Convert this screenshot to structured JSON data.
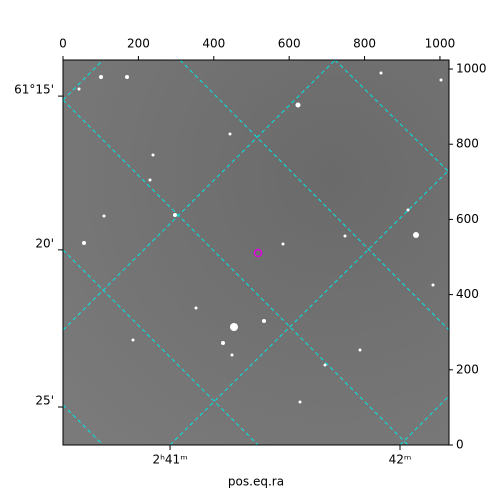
{
  "chart_data": {
    "type": "image",
    "x_label": "pos.eq.ra",
    "xlim": [
      0,
      1024
    ],
    "ylim": [
      0,
      1024
    ],
    "xticks": [
      0,
      200,
      400,
      600,
      800,
      1000
    ],
    "yticks": [
      0,
      200,
      400,
      600,
      800,
      1000
    ],
    "ra_ticks": [
      {
        "value": 284,
        "label": "2ʰ41ᵐ"
      },
      {
        "value": 894,
        "label": "42ᵐ"
      }
    ],
    "dec_ticks": [
      {
        "value": 928,
        "label": "61°15'"
      },
      {
        "value": 519,
        "label": "20'"
      },
      {
        "value": 101,
        "label": "25'"
      }
    ],
    "marker_color": "#e000e0",
    "grid_color": "#00e5e5"
  }
}
